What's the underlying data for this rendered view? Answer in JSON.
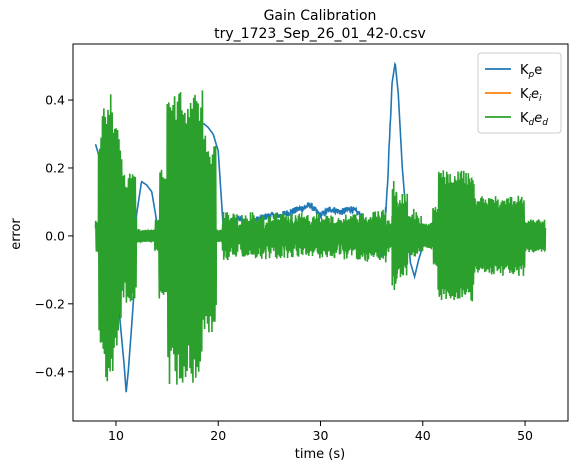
{
  "chart_data": {
    "type": "line",
    "title": "Gain Calibration",
    "subtitle": "try_1723_Sep_26_01_42-0.csv",
    "xlabel": "time (s)",
    "ylabel": "error",
    "xlim": [
      5.8,
      54.2
    ],
    "ylim": [
      -0.545,
      0.565
    ],
    "xticks": [
      10,
      20,
      30,
      40,
      50
    ],
    "yticks": [
      -0.4,
      -0.2,
      0.0,
      0.2,
      0.4
    ],
    "xtick_labels": [
      "10",
      "20",
      "30",
      "40",
      "50"
    ],
    "ytick_labels": [
      "−0.4",
      "−0.2",
      "0.0",
      "0.2",
      "0.4"
    ],
    "grid": false,
    "legend_position": "top-right",
    "series": [
      {
        "name": "Kpe",
        "color": "#1f77b4",
        "x": [
          8.0,
          8.3,
          8.5,
          8.7,
          9.0,
          9.3,
          9.6,
          10.0,
          10.4,
          10.8,
          11.0,
          11.2,
          11.5,
          11.8,
          12.0,
          12.5,
          13.0,
          13.5,
          14.0,
          14.5,
          15.0,
          15.5,
          16.0,
          16.5,
          17.0,
          17.5,
          18.0,
          18.3,
          18.6,
          19.0,
          19.5,
          20.0,
          20.5,
          21.0,
          22.0,
          23.0,
          24.0,
          25.0,
          26.0,
          27.0,
          28.0,
          29.0,
          30.0,
          31.0,
          32.0,
          33.0,
          34.0,
          35.0,
          36.0,
          36.5,
          37.0,
          37.3,
          37.6,
          38.0,
          38.4,
          38.8,
          39.2,
          39.6,
          40.0,
          40.5,
          41.0,
          42.0,
          43.0,
          44.0,
          45.0,
          46.0,
          47.0,
          48.0,
          49.0,
          50.0,
          51.0,
          52.0
        ],
        "y": [
          0.27,
          0.24,
          0.21,
          0.16,
          0.09,
          0.02,
          -0.05,
          -0.12,
          -0.25,
          -0.38,
          -0.46,
          -0.4,
          -0.28,
          -0.15,
          0.06,
          0.16,
          0.15,
          0.13,
          0.04,
          -0.01,
          0.02,
          0.12,
          0.25,
          0.3,
          0.32,
          0.31,
          0.34,
          0.33,
          0.33,
          0.32,
          0.3,
          0.25,
          0.02,
          0.04,
          0.05,
          0.04,
          0.05,
          0.06,
          0.06,
          0.07,
          0.08,
          0.09,
          0.06,
          0.08,
          0.07,
          0.08,
          0.06,
          -0.02,
          -0.06,
          0.12,
          0.45,
          0.51,
          0.42,
          0.2,
          0.05,
          -0.08,
          -0.12,
          -0.07,
          -0.03,
          0.02,
          0.04,
          0.05,
          0.03,
          0.02,
          -0.01,
          0.02,
          0.03,
          0.02,
          0.0,
          0.02,
          0.01,
          -0.01
        ]
      },
      {
        "name": "Kiei",
        "color": "#ff7f0e",
        "x": [
          8.0,
          45.0
        ],
        "y": [
          0.0,
          0.0
        ]
      },
      {
        "name": "Kded",
        "color": "#2ca02c",
        "x": [
          8.0,
          52.0
        ],
        "y": [
          -0.02,
          0.0
        ]
      }
    ],
    "legend_entries": [
      {
        "base": "K",
        "sub": "p",
        "rest": "e",
        "rest_italic": false,
        "rest_sub": ""
      },
      {
        "base": "K",
        "sub": "i",
        "rest": "e",
        "rest_italic": true,
        "rest_sub": "i"
      },
      {
        "base": "K",
        "sub": "d",
        "rest": "e",
        "rest_italic": true,
        "rest_sub": "d"
      }
    ]
  }
}
